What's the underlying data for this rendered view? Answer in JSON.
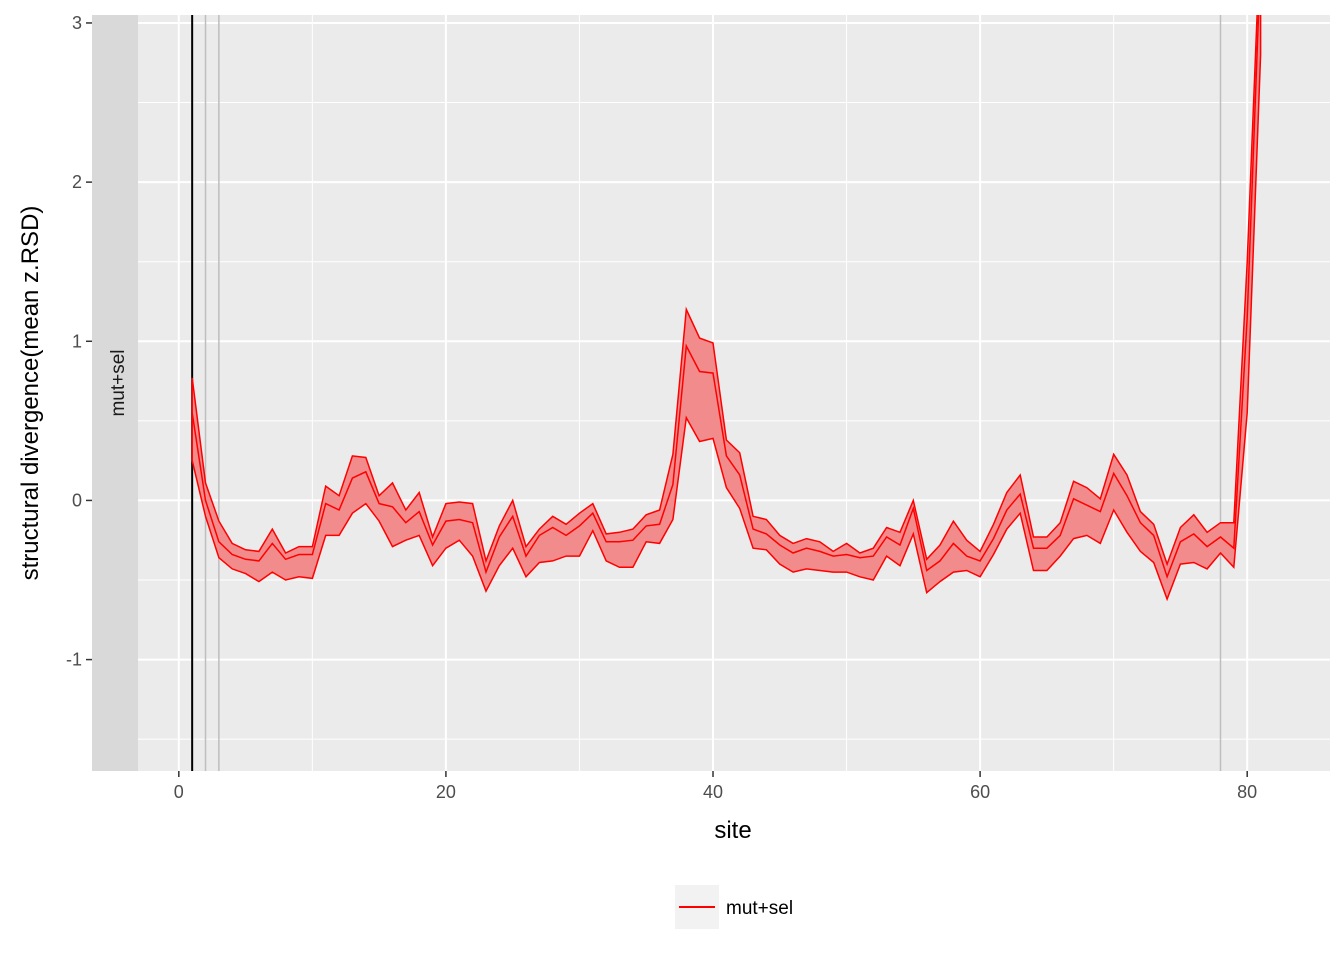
{
  "chart_data": {
    "type": "line",
    "xlabel": "site",
    "ylabel": "structural divergence(mean z.RSD)",
    "xlim": [
      -6.5,
      86.2
    ],
    "ylim": [
      -1.7,
      3.05
    ],
    "x_ticks": [
      0,
      20,
      40,
      60,
      80
    ],
    "y_ticks": [
      -1,
      0,
      1,
      2,
      3
    ],
    "grid": true,
    "facet_label": "mut+sel",
    "legend": {
      "position": "bottom",
      "entries": [
        "mut+sel"
      ]
    },
    "colors": {
      "series": "#ff0000",
      "ribbon": "#f28b8b",
      "panel": "#ebebeb",
      "strip": "#d9d9d9",
      "grid": "#ffffff"
    },
    "vlines": [
      {
        "x": 1,
        "color": "#000000"
      },
      {
        "x": 2,
        "color": "#bebebe"
      },
      {
        "x": 3,
        "color": "#bebebe"
      },
      {
        "x": 78,
        "color": "#bebebe"
      }
    ],
    "series": [
      {
        "name": "mut+sel",
        "x": [
          1,
          2,
          3,
          4,
          5,
          6,
          7,
          8,
          9,
          10,
          11,
          12,
          13,
          14,
          15,
          16,
          17,
          18,
          19,
          20,
          21,
          22,
          23,
          24,
          25,
          26,
          27,
          28,
          29,
          30,
          31,
          32,
          33,
          34,
          35,
          36,
          37,
          38,
          39,
          40,
          41,
          42,
          43,
          44,
          45,
          46,
          47,
          48,
          49,
          50,
          51,
          52,
          53,
          54,
          55,
          56,
          57,
          58,
          59,
          60,
          61,
          62,
          63,
          64,
          65,
          66,
          67,
          68,
          69,
          70,
          71,
          72,
          73,
          74,
          75,
          76,
          77,
          78,
          79,
          80,
          81
        ],
        "lower": [
          0.25,
          -0.1,
          -0.36,
          -0.43,
          -0.46,
          -0.51,
          -0.45,
          -0.5,
          -0.48,
          -0.49,
          -0.22,
          -0.22,
          -0.08,
          -0.02,
          -0.13,
          -0.29,
          -0.25,
          -0.22,
          -0.41,
          -0.3,
          -0.25,
          -0.35,
          -0.57,
          -0.41,
          -0.3,
          -0.48,
          -0.39,
          -0.38,
          -0.35,
          -0.35,
          -0.19,
          -0.38,
          -0.42,
          -0.42,
          -0.26,
          -0.27,
          -0.12,
          0.52,
          0.37,
          0.39,
          0.08,
          -0.05,
          -0.3,
          -0.31,
          -0.4,
          -0.45,
          -0.43,
          -0.44,
          -0.45,
          -0.45,
          -0.48,
          -0.5,
          -0.35,
          -0.41,
          -0.21,
          -0.58,
          -0.51,
          -0.45,
          -0.44,
          -0.48,
          -0.34,
          -0.18,
          -0.08,
          -0.44,
          -0.44,
          -0.35,
          -0.24,
          -0.22,
          -0.27,
          -0.06,
          -0.2,
          -0.32,
          -0.39,
          -0.62,
          -0.4,
          -0.39,
          -0.43,
          -0.33,
          -0.42,
          0.55,
          2.8
        ],
        "mid": [
          0.55,
          0.0,
          -0.26,
          -0.34,
          -0.37,
          -0.38,
          -0.27,
          -0.37,
          -0.34,
          -0.34,
          -0.02,
          -0.06,
          0.14,
          0.18,
          -0.02,
          -0.04,
          -0.14,
          -0.07,
          -0.28,
          -0.13,
          -0.12,
          -0.14,
          -0.45,
          -0.23,
          -0.1,
          -0.35,
          -0.22,
          -0.17,
          -0.22,
          -0.16,
          -0.08,
          -0.26,
          -0.26,
          -0.25,
          -0.16,
          -0.15,
          0.1,
          0.97,
          0.81,
          0.8,
          0.28,
          0.16,
          -0.18,
          -0.21,
          -0.28,
          -0.33,
          -0.3,
          -0.32,
          -0.35,
          -0.34,
          -0.36,
          -0.35,
          -0.23,
          -0.28,
          -0.05,
          -0.44,
          -0.38,
          -0.27,
          -0.35,
          -0.38,
          -0.24,
          -0.06,
          0.04,
          -0.3,
          -0.3,
          -0.22,
          0.01,
          -0.03,
          -0.07,
          0.17,
          0.03,
          -0.14,
          -0.22,
          -0.48,
          -0.26,
          -0.21,
          -0.29,
          -0.23,
          -0.3,
          1.15,
          3.4
        ],
        "upper": [
          0.77,
          0.11,
          -0.13,
          -0.27,
          -0.31,
          -0.32,
          -0.18,
          -0.33,
          -0.29,
          -0.29,
          0.09,
          0.03,
          0.28,
          0.27,
          0.03,
          0.11,
          -0.06,
          0.05,
          -0.23,
          -0.02,
          -0.01,
          -0.02,
          -0.38,
          -0.16,
          0.0,
          -0.29,
          -0.18,
          -0.1,
          -0.15,
          -0.08,
          -0.02,
          -0.21,
          -0.2,
          -0.18,
          -0.09,
          -0.06,
          0.29,
          1.2,
          1.02,
          0.99,
          0.38,
          0.3,
          -0.1,
          -0.12,
          -0.22,
          -0.27,
          -0.24,
          -0.26,
          -0.32,
          -0.27,
          -0.33,
          -0.3,
          -0.17,
          -0.2,
          0.0,
          -0.37,
          -0.28,
          -0.13,
          -0.25,
          -0.32,
          -0.15,
          0.05,
          0.16,
          -0.23,
          -0.23,
          -0.14,
          0.12,
          0.08,
          0.01,
          0.29,
          0.16,
          -0.07,
          -0.15,
          -0.4,
          -0.17,
          -0.09,
          -0.2,
          -0.14,
          -0.14,
          1.5,
          3.6
        ]
      }
    ]
  }
}
